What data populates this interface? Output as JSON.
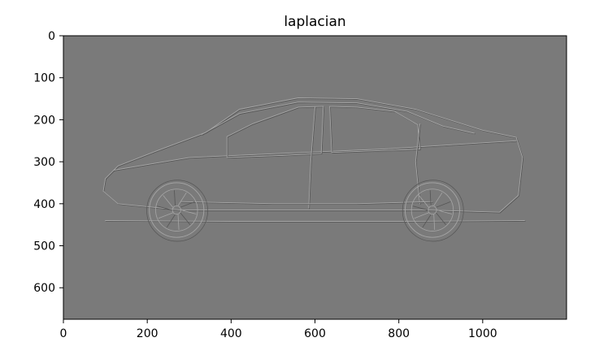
{
  "chart_data": {
    "type": "image",
    "title": "laplacian",
    "xlabel": "",
    "ylabel": "",
    "xlim": [
      0,
      1200
    ],
    "ylim": [
      675,
      0
    ],
    "x_ticks": [
      0,
      200,
      400,
      600,
      800,
      1000
    ],
    "y_ticks": [
      0,
      100,
      200,
      300,
      400,
      500,
      600
    ],
    "x_tick_labels": [
      "0",
      "200",
      "400",
      "600",
      "800",
      "1000"
    ],
    "y_tick_labels": [
      "0",
      "100",
      "200",
      "300",
      "400",
      "500",
      "600"
    ],
    "grid": false,
    "legend": "none",
    "background_color": "#7a7a7a",
    "edge_color_light": "#a6a6a6",
    "edge_color_dark": "#555555",
    "content_icon": "car-side-outline",
    "features": [
      {
        "name": "body-outline",
        "points": [
          [
            95,
            370
          ],
          [
            100,
            340
          ],
          [
            130,
            310
          ],
          [
            220,
            275
          ],
          [
            340,
            230
          ],
          [
            420,
            175
          ],
          [
            560,
            148
          ],
          [
            700,
            150
          ],
          [
            840,
            175
          ],
          [
            1000,
            225
          ],
          [
            1080,
            242
          ],
          [
            1095,
            290
          ],
          [
            1085,
            380
          ],
          [
            1040,
            420
          ],
          [
            870,
            415
          ],
          [
            500,
            415
          ],
          [
            280,
            415
          ],
          [
            130,
            400
          ],
          [
            95,
            370
          ]
        ]
      },
      {
        "name": "roof-line",
        "points": [
          [
            330,
            235
          ],
          [
            420,
            185
          ],
          [
            560,
            158
          ],
          [
            700,
            160
          ],
          [
            820,
            180
          ],
          [
            905,
            215
          ],
          [
            980,
            232
          ]
        ]
      },
      {
        "name": "beltline",
        "points": [
          [
            120,
            320
          ],
          [
            300,
            290
          ],
          [
            520,
            280
          ],
          [
            760,
            270
          ],
          [
            1000,
            255
          ],
          [
            1080,
            250
          ]
        ]
      },
      {
        "name": "window-front",
        "points": [
          [
            390,
            240
          ],
          [
            450,
            210
          ],
          [
            560,
            170
          ],
          [
            620,
            168
          ],
          [
            615,
            280
          ],
          [
            520,
            285
          ],
          [
            390,
            290
          ],
          [
            390,
            240
          ]
        ]
      },
      {
        "name": "window-rear",
        "points": [
          [
            635,
            168
          ],
          [
            700,
            170
          ],
          [
            790,
            180
          ],
          [
            845,
            212
          ],
          [
            850,
            270
          ],
          [
            640,
            278
          ],
          [
            635,
            168
          ]
        ]
      },
      {
        "name": "door-split-front",
        "points": [
          [
            600,
            170
          ],
          [
            590,
            300
          ],
          [
            585,
            410
          ]
        ]
      },
      {
        "name": "door-split-rear",
        "points": [
          [
            850,
            210
          ],
          [
            840,
            300
          ],
          [
            850,
            400
          ]
        ]
      },
      {
        "name": "sill-line",
        "points": [
          [
            280,
            395
          ],
          [
            500,
            400
          ],
          [
            700,
            400
          ],
          [
            880,
            395
          ]
        ]
      },
      {
        "name": "ground-line",
        "points": [
          [
            100,
            440
          ],
          [
            400,
            442
          ],
          [
            800,
            442
          ],
          [
            1100,
            440
          ]
        ]
      }
    ],
    "wheels": [
      {
        "name": "front-wheel",
        "cx": 270,
        "cy": 415,
        "r": 65,
        "rim_r": 50
      },
      {
        "name": "rear-wheel",
        "cx": 880,
        "cy": 415,
        "r": 65,
        "rim_r": 50
      }
    ]
  }
}
